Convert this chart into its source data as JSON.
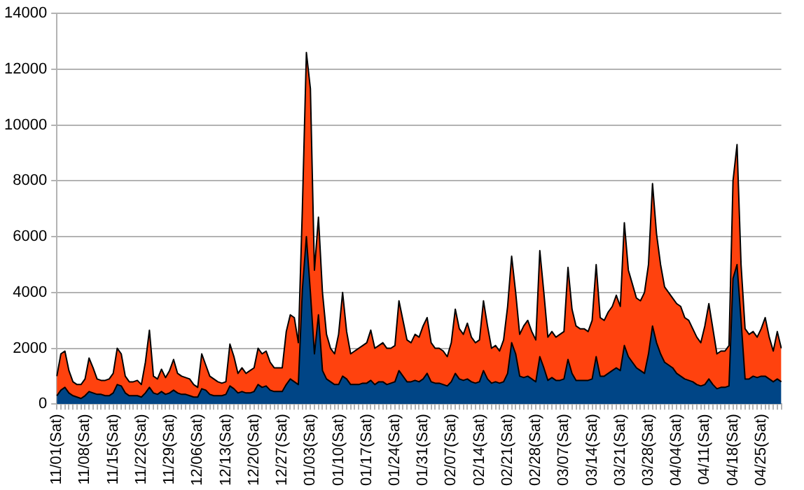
{
  "chart_data": {
    "type": "area",
    "stacked": true,
    "grid": "y",
    "categories": [
      "11/01(Sat)",
      null,
      null,
      null,
      null,
      null,
      null,
      "11/08(Sat)",
      null,
      null,
      null,
      null,
      null,
      null,
      "11/15(Sat)",
      null,
      null,
      null,
      null,
      null,
      null,
      "11/22(Sat)",
      null,
      null,
      null,
      null,
      null,
      null,
      "11/29(Sat)",
      null,
      null,
      null,
      null,
      null,
      null,
      "12/06(Sat)",
      null,
      null,
      null,
      null,
      null,
      null,
      "12/13(Sat)",
      null,
      null,
      null,
      null,
      null,
      null,
      "12/20(Sat)",
      null,
      null,
      null,
      null,
      null,
      null,
      "12/27(Sat)",
      null,
      null,
      null,
      null,
      null,
      null,
      "01/03(Sat)",
      null,
      null,
      null,
      null,
      null,
      null,
      "01/10(Sat)",
      null,
      null,
      null,
      null,
      null,
      null,
      "01/17(Sat)",
      null,
      null,
      null,
      null,
      null,
      null,
      "01/24(Sat)",
      null,
      null,
      null,
      null,
      null,
      null,
      "01/31(Sat)",
      null,
      null,
      null,
      null,
      null,
      null,
      "02/07(Sat)",
      null,
      null,
      null,
      null,
      null,
      null,
      "02/14(Sat)",
      null,
      null,
      null,
      null,
      null,
      null,
      "02/21(Sat)",
      null,
      null,
      null,
      null,
      null,
      null,
      "02/28(Sat)",
      null,
      null,
      null,
      null,
      null,
      null,
      "03/07(Sat)",
      null,
      null,
      null,
      null,
      null,
      null,
      "03/14(Sat)",
      null,
      null,
      null,
      null,
      null,
      null,
      "03/21(Sat)",
      null,
      null,
      null,
      null,
      null,
      null,
      "03/28(Sat)",
      null,
      null,
      null,
      null,
      null,
      null,
      "04/04(Sat)",
      null,
      null,
      null,
      null,
      null,
      null,
      "04/11(Sat)",
      null,
      null,
      null,
      null,
      null,
      null,
      "04/18(Sat)",
      null,
      null,
      null,
      null,
      null,
      null,
      "04/25(Sat)",
      null,
      null,
      null,
      null,
      null
    ],
    "ylim": [
      0,
      14000
    ],
    "yticks": [
      0,
      2000,
      4000,
      6000,
      8000,
      10000,
      12000,
      14000
    ],
    "series": [
      {
        "color": "#004586",
        "values": [
          300,
          500,
          600,
          400,
          300,
          250,
          200,
          300,
          450,
          400,
          350,
          350,
          300,
          300,
          400,
          700,
          650,
          400,
          300,
          300,
          300,
          250,
          400,
          600,
          400,
          350,
          450,
          350,
          400,
          500,
          400,
          350,
          350,
          300,
          250,
          250,
          550,
          500,
          350,
          300,
          300,
          300,
          350,
          650,
          550,
          400,
          450,
          400,
          400,
          450,
          700,
          600,
          650,
          500,
          450,
          450,
          450,
          700,
          900,
          800,
          700,
          4100,
          6000,
          4000,
          1800,
          3200,
          1200,
          900,
          800,
          700,
          700,
          1000,
          900,
          700,
          700,
          700,
          750,
          750,
          850,
          700,
          800,
          800,
          700,
          750,
          800,
          1200,
          1000,
          800,
          800,
          850,
          800,
          900,
          1100,
          800,
          750,
          750,
          700,
          650,
          800,
          1100,
          900,
          850,
          900,
          800,
          750,
          800,
          1200,
          900,
          750,
          800,
          750,
          800,
          1100,
          2200,
          1800,
          1000,
          950,
          1000,
          900,
          800,
          1700,
          1300,
          850,
          950,
          850,
          850,
          900,
          1600,
          1100,
          850,
          850,
          850,
          850,
          900,
          1700,
          1000,
          1000,
          1100,
          1200,
          1300,
          1200,
          2100,
          1700,
          1500,
          1300,
          1200,
          1100,
          1800,
          2800,
          2200,
          1800,
          1500,
          1400,
          1300,
          1100,
          1000,
          900,
          850,
          800,
          700,
          650,
          700,
          900,
          700,
          550,
          600,
          600,
          650,
          4500,
          5000,
          3000,
          900,
          900,
          1000,
          950,
          1000,
          1000,
          900,
          800,
          900,
          800
        ]
      },
      {
        "color": "#ff420e",
        "values": [
          700,
          1300,
          1300,
          800,
          500,
          450,
          500,
          600,
          1200,
          900,
          550,
          500,
          550,
          600,
          700,
          1300,
          1150,
          600,
          500,
          500,
          550,
          450,
          1100,
          2050,
          600,
          550,
          800,
          600,
          800,
          1100,
          700,
          650,
          600,
          600,
          450,
          350,
          1250,
          900,
          650,
          600,
          500,
          450,
          450,
          1500,
          1150,
          700,
          850,
          700,
          800,
          850,
          1300,
          1200,
          1250,
          1000,
          850,
          850,
          850,
          1900,
          2300,
          2300,
          1500,
          2900,
          6600,
          7300,
          3000,
          3500,
          2800,
          1600,
          1200,
          1100,
          1800,
          3000,
          1700,
          1100,
          1200,
          1300,
          1350,
          1450,
          1800,
          1300,
          1300,
          1400,
          1300,
          1250,
          1300,
          2500,
          2000,
          1500,
          1400,
          1650,
          1600,
          1900,
          2000,
          1400,
          1250,
          1250,
          1200,
          1050,
          1400,
          2300,
          1800,
          1650,
          2000,
          1600,
          1450,
          1500,
          2500,
          1900,
          1250,
          1300,
          1150,
          1500,
          2400,
          3100,
          2200,
          1500,
          1850,
          2000,
          1700,
          1500,
          3800,
          2700,
          1550,
          1650,
          1550,
          1650,
          1700,
          3300,
          2300,
          1950,
          1850,
          1850,
          1750,
          2100,
          3300,
          2100,
          2000,
          2200,
          2300,
          2600,
          2300,
          4400,
          3100,
          2800,
          2500,
          2500,
          2900,
          3200,
          5100,
          3900,
          3200,
          2700,
          2600,
          2500,
          2500,
          2500,
          2200,
          2150,
          1900,
          1700,
          1550,
          2100,
          2700,
          2000,
          1250,
          1300,
          1300,
          1450,
          3500,
          4300,
          2000,
          1800,
          1600,
          1600,
          1450,
          1700,
          2100,
          1500,
          1100,
          1700,
          1200
        ]
      }
    ]
  }
}
